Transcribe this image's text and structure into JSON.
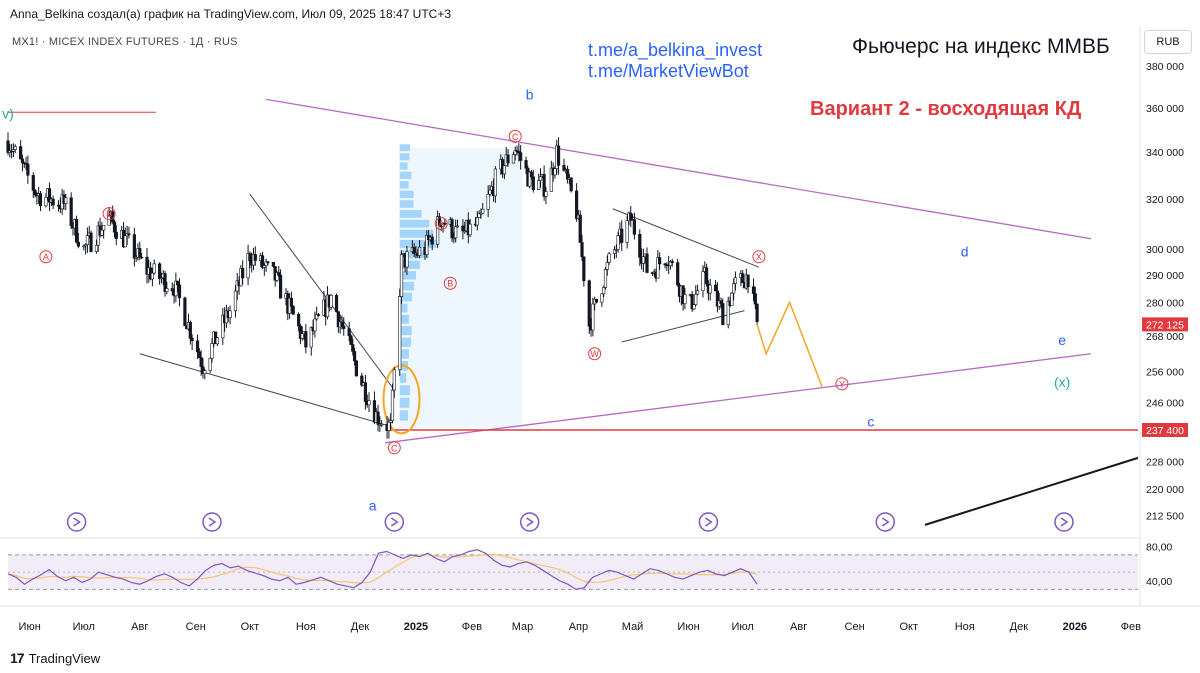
{
  "header": {
    "credit": "Anna_Belkina создал(а) график на TradingView.com, Июл 09, 2025 18:47 UTC+3",
    "symbol": "MX1! · MICEX INDEX FUTURES · 1Д · RUS",
    "currency": "RUB"
  },
  "annotations": {
    "link1": "t.me/a_belkina_invest",
    "link2": "t.me/MarketViewBot",
    "title": "Фьючерс на индекс ММВБ",
    "variant": "Вариант 2 - восходящая КД"
  },
  "footer": {
    "brand": "TradingView"
  },
  "colors": {
    "up_candle": "#131722",
    "down_candle": "#131722",
    "trend_line": "#ba68c8",
    "level_line": "#e03a3e",
    "projection": "#f5a623",
    "wave_blue": "#2962ff",
    "wave_red": "#e03a3e",
    "wave_green": "#22ab94",
    "rsi_line": "#7e57c2",
    "rsi_ma": "#f7c56b",
    "volume_profile": "#e3f2fd"
  },
  "chart_data": {
    "type": "candlestick",
    "interval": "1D",
    "y_scale": "log",
    "ylim": [
      207000,
      390000
    ],
    "price_axis_ticks": [
      380000,
      360000,
      340000,
      320000,
      300000,
      290000,
      280000,
      268000,
      256000,
      246000,
      237400,
      228000,
      220000,
      212500
    ],
    "price_axis_labels": [
      "380 000",
      "360 000",
      "340 000",
      "320 000",
      "300 000",
      "290 000",
      "280 000",
      "268 000",
      "256 000",
      "246 000",
      "237 400",
      "228 000",
      "220 000",
      "212 500"
    ],
    "time_labels": [
      "Июн",
      "Июл",
      "Авг",
      "Сен",
      "Окт",
      "Ноя",
      "Дек",
      "2025",
      "Фев",
      "Мар",
      "Апр",
      "Май",
      "Июн",
      "Июл",
      "Авг",
      "Сен",
      "Окт",
      "Ноя",
      "Дек",
      "2026",
      "Фев"
    ],
    "x_range": [
      "2024-05-20",
      "2026-02-05"
    ],
    "time_label_dates": [
      "2024-06-01",
      "2024-07-01",
      "2024-08-01",
      "2024-09-01",
      "2024-10-01",
      "2024-11-01",
      "2024-12-01",
      "2025-01-01",
      "2025-02-01",
      "2025-03-01",
      "2025-04-01",
      "2025-05-01",
      "2025-06-01",
      "2025-07-01",
      "2025-08-01",
      "2025-09-01",
      "2025-10-01",
      "2025-11-01",
      "2025-12-01",
      "2026-01-01",
      "2026-02-01"
    ],
    "price_path": [
      [
        "2024-05-20",
        345000
      ],
      [
        "2024-06-05",
        322000
      ],
      [
        "2024-06-20",
        318000
      ],
      [
        "2024-07-01",
        300000
      ],
      [
        "2024-07-15",
        312000
      ],
      [
        "2024-08-05",
        292000
      ],
      [
        "2024-08-20",
        286000
      ],
      [
        "2024-09-05",
        258000
      ],
      [
        "2024-09-20",
        277000
      ],
      [
        "2024-10-01",
        298000
      ],
      [
        "2024-10-15",
        289000
      ],
      [
        "2024-11-01",
        265000
      ],
      [
        "2024-11-15",
        282000
      ],
      [
        "2024-12-01",
        254000
      ],
      [
        "2024-12-10",
        242000
      ],
      [
        "2024-12-18",
        238000
      ],
      [
        "2024-12-20",
        255000
      ],
      [
        "2024-12-24",
        295000
      ],
      [
        "2025-01-06",
        300000
      ],
      [
        "2025-01-15",
        312000
      ],
      [
        "2025-01-25",
        305000
      ],
      [
        "2025-02-05",
        310000
      ],
      [
        "2025-02-15",
        330000
      ],
      [
        "2025-02-25",
        342000
      ],
      [
        "2025-03-05",
        328000
      ],
      [
        "2025-03-15",
        325000
      ],
      [
        "2025-03-20",
        340000
      ],
      [
        "2025-03-31",
        315000
      ],
      [
        "2025-04-07",
        272000
      ],
      [
        "2025-04-18",
        295000
      ],
      [
        "2025-04-30",
        312000
      ],
      [
        "2025-05-10",
        290000
      ],
      [
        "2025-05-20",
        298000
      ],
      [
        "2025-06-01",
        278000
      ],
      [
        "2025-06-10",
        289000
      ],
      [
        "2025-06-20",
        276000
      ],
      [
        "2025-06-27",
        286000
      ],
      [
        "2025-07-04",
        290000
      ],
      [
        "2025-07-09",
        272125
      ]
    ],
    "last_price": 272125,
    "last_price_label": "272 125",
    "key_level": 237400,
    "key_level_label": "237 400",
    "upper_level": 361000,
    "projection_path": [
      [
        "2025-07-09",
        272125
      ],
      [
        "2025-07-14",
        262000
      ],
      [
        "2025-07-27",
        280000
      ],
      [
        "2025-08-14",
        251000
      ]
    ],
    "wave_labels": [
      {
        "label": "v)",
        "date": "2024-05-20",
        "price": 355000,
        "color": "green"
      },
      {
        "label": "b",
        "date": "2025-03-05",
        "price": 364000,
        "color": "blue"
      },
      {
        "label": "a",
        "date": "2024-12-08",
        "price": 214000,
        "color": "blue"
      },
      {
        "label": "c",
        "date": "2025-09-10",
        "price": 238500,
        "color": "blue"
      },
      {
        "label": "d",
        "date": "2025-11-01",
        "price": 297000,
        "color": "blue"
      },
      {
        "label": "e",
        "date": "2025-12-25",
        "price": 265000,
        "color": "blue"
      },
      {
        "label": "(x)",
        "date": "2025-12-25",
        "price": 251000,
        "color": "green"
      },
      {
        "label": "A",
        "date": "2024-06-10",
        "price": 297000,
        "color": "red",
        "circled": true
      },
      {
        "label": "B",
        "date": "2024-07-15",
        "price": 314000,
        "color": "red",
        "circled": true
      },
      {
        "label": "C",
        "date": "2024-12-20",
        "price": 232000,
        "color": "red",
        "circled": true
      },
      {
        "label": "A",
        "date": "2025-01-15",
        "price": 310000,
        "color": "red",
        "circled": true
      },
      {
        "label": "B",
        "date": "2025-01-20",
        "price": 287000,
        "color": "red",
        "circled": true
      },
      {
        "label": "C",
        "date": "2025-02-25",
        "price": 347000,
        "color": "red",
        "circled": true
      },
      {
        "label": "W",
        "date": "2025-04-10",
        "price": 262000,
        "color": "red",
        "circled": true
      },
      {
        "label": "X",
        "date": "2025-07-10",
        "price": 297000,
        "color": "red",
        "circled": true
      },
      {
        "label": "Y",
        "date": "2025-08-25",
        "price": 252000,
        "color": "red",
        "circled": true
      }
    ],
    "rsi": {
      "ticks": [
        80,
        40
      ],
      "tick_labels": [
        "80,00",
        "40,00"
      ],
      "band": [
        30,
        70
      ],
      "values": [
        48,
        44,
        36,
        42,
        47,
        53,
        45,
        40,
        44,
        38,
        42,
        50,
        47,
        44,
        42,
        38,
        36,
        40,
        45,
        48,
        44,
        38,
        34,
        42,
        52,
        58,
        60,
        55,
        57,
        52,
        49,
        46,
        42,
        40,
        44,
        36,
        38,
        41,
        44,
        40,
        36,
        34,
        32,
        38,
        50,
        72,
        74,
        70,
        66,
        70,
        68,
        72,
        66,
        62,
        68,
        70,
        74,
        76,
        72,
        64,
        58,
        56,
        60,
        62,
        58,
        52,
        46,
        40,
        36,
        30,
        32,
        44,
        48,
        52,
        50,
        46,
        42,
        48,
        54,
        52,
        48,
        44,
        42,
        46,
        50,
        52,
        48,
        46,
        50,
        54,
        50,
        36
      ]
    }
  }
}
